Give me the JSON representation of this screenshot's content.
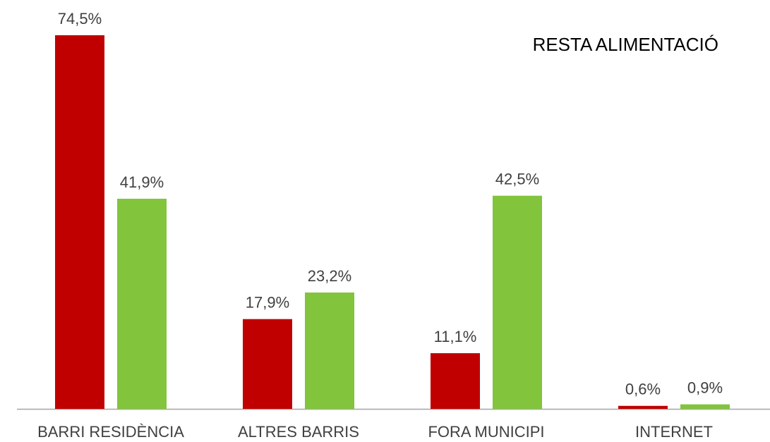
{
  "chart_data": {
    "type": "bar",
    "title": "RESTA ALIMENTACIÓ",
    "categories": [
      "BARRI RESIDÈNCIA",
      "ALTRES BARRIS",
      "FORA MUNICIPI",
      "INTERNET"
    ],
    "series": [
      {
        "color": "#c00000",
        "values": [
          74.5,
          17.9,
          11.1,
          0.6
        ],
        "value_labels": [
          "74,5%",
          "17,9%",
          "11,1%",
          "0,6%"
        ]
      },
      {
        "color": "#82c43c",
        "values": [
          41.9,
          23.2,
          42.5,
          0.9
        ],
        "value_labels": [
          "41,9%",
          "23,2%",
          "42,5%",
          "0,9%"
        ]
      }
    ]
  }
}
